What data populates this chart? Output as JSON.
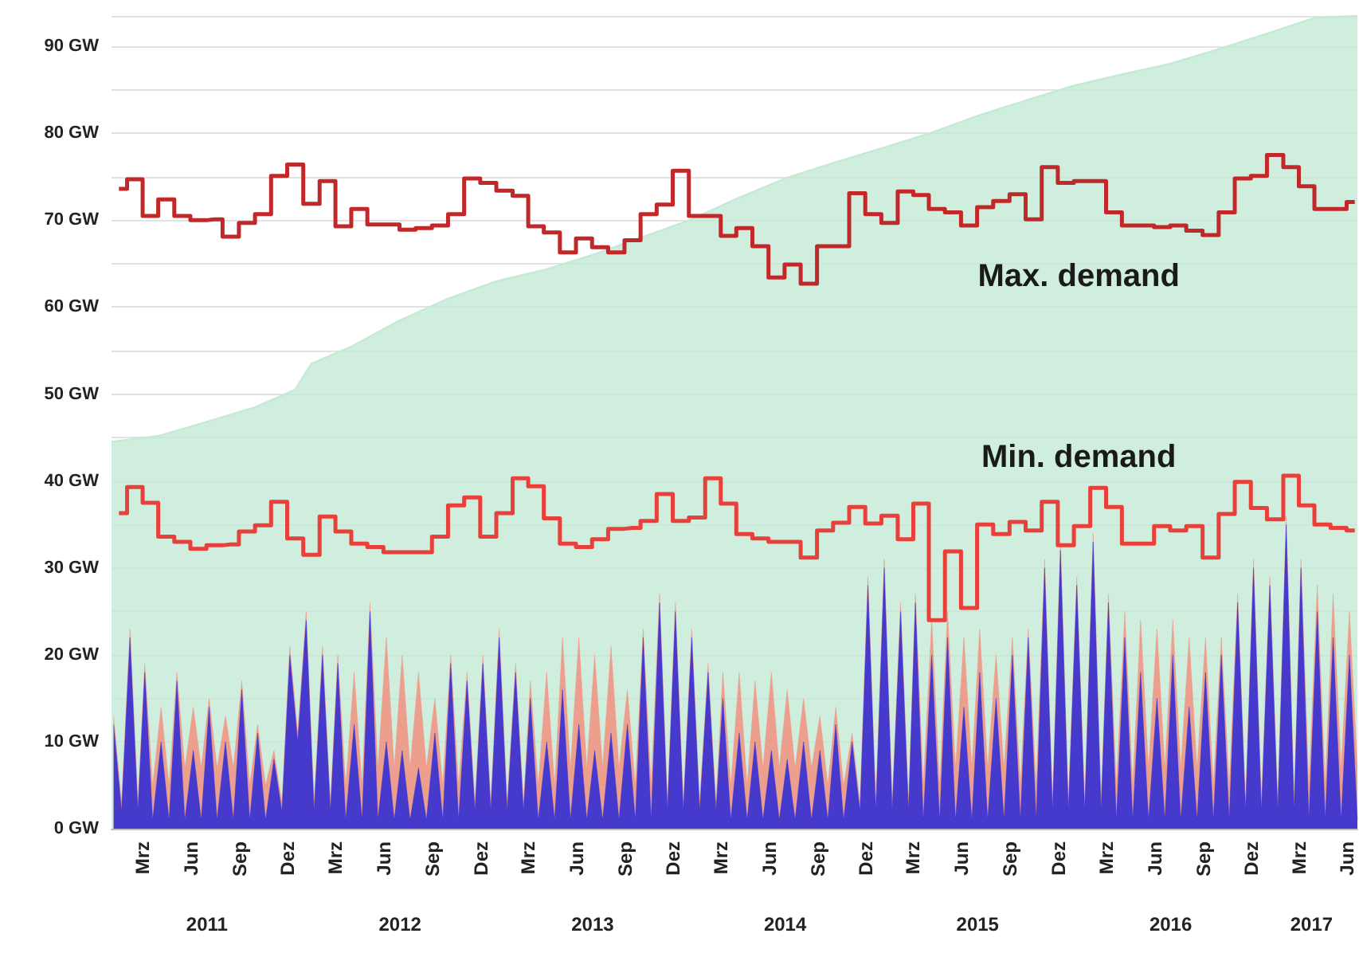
{
  "chart_data": {
    "type": "area",
    "xlim": [
      "2011-01-01",
      "2017-06-20"
    ],
    "ylim": [
      0,
      93.5
    ],
    "yticks": [
      {
        "value": 0,
        "label": "0 GW"
      },
      {
        "value": 5,
        "label": null
      },
      {
        "value": 10,
        "label": "10 GW"
      },
      {
        "value": 15,
        "label": null
      },
      {
        "value": 20,
        "label": "20 GW"
      },
      {
        "value": 25,
        "label": null
      },
      {
        "value": 30,
        "label": "30 GW"
      },
      {
        "value": 35,
        "label": null
      },
      {
        "value": 40,
        "label": "40 GW"
      },
      {
        "value": 45,
        "label": null
      },
      {
        "value": 50,
        "label": "50 GW"
      },
      {
        "value": 55,
        "label": null
      },
      {
        "value": 60,
        "label": "60 GW"
      },
      {
        "value": 65,
        "label": null
      },
      {
        "value": 70,
        "label": "70 GW"
      },
      {
        "value": 75,
        "label": null
      },
      {
        "value": 80,
        "label": "80 GW"
      },
      {
        "value": 85,
        "label": null
      },
      {
        "value": 90,
        "label": "90 GW"
      }
    ],
    "xticks": [
      {
        "value": "2011-03-01",
        "label": "Mrz"
      },
      {
        "value": "2011-06-01",
        "label": "Jun"
      },
      {
        "value": "2011-09-01",
        "label": "Sep"
      },
      {
        "value": "2011-12-01",
        "label": "Dez"
      },
      {
        "value": "2012-03-01",
        "label": "Mrz"
      },
      {
        "value": "2012-06-01",
        "label": "Jun"
      },
      {
        "value": "2012-09-01",
        "label": "Sep"
      },
      {
        "value": "2012-12-01",
        "label": "Dez"
      },
      {
        "value": "2013-03-01",
        "label": "Mrz"
      },
      {
        "value": "2013-06-01",
        "label": "Jun"
      },
      {
        "value": "2013-09-01",
        "label": "Sep"
      },
      {
        "value": "2013-12-01",
        "label": "Dez"
      },
      {
        "value": "2014-03-01",
        "label": "Mrz"
      },
      {
        "value": "2014-06-01",
        "label": "Jun"
      },
      {
        "value": "2014-09-01",
        "label": "Sep"
      },
      {
        "value": "2014-12-01",
        "label": "Dez"
      },
      {
        "value": "2015-03-01",
        "label": "Mrz"
      },
      {
        "value": "2015-06-01",
        "label": "Jun"
      },
      {
        "value": "2015-09-01",
        "label": "Sep"
      },
      {
        "value": "2015-12-01",
        "label": "Dez"
      },
      {
        "value": "2016-03-01",
        "label": "Mrz"
      },
      {
        "value": "2016-06-01",
        "label": "Jun"
      },
      {
        "value": "2016-09-01",
        "label": "Sep"
      },
      {
        "value": "2016-12-01",
        "label": "Dez"
      },
      {
        "value": "2017-03-01",
        "label": "Mrz"
      },
      {
        "value": "2017-06-01",
        "label": "Jun"
      }
    ],
    "grid": "y",
    "marker": "none",
    "annotations": [
      "Max. demand",
      "Min. demand"
    ],
    "x2lim": [
      "2011-01-01",
      "2017-06-20"
    ],
    "x2ticks": [
      {
        "value": "2011-07-01",
        "label": "2011"
      },
      {
        "value": "2012-07-01",
        "label": "2012"
      },
      {
        "value": "2013-07-01",
        "label": "2013"
      },
      {
        "value": "2014-07-01",
        "label": "2014"
      },
      {
        "value": "2015-07-01",
        "label": "2015"
      },
      {
        "value": "2016-07-01",
        "label": "2016"
      },
      {
        "value": "2017-03-25",
        "label": "2017"
      }
    ],
    "x": [
      "2011-01-05",
      "2011-01-20",
      "2011-02-05",
      "2011-02-20",
      "2011-03-05",
      "2011-03-20",
      "2011-04-05",
      "2011-04-20",
      "2011-05-05",
      "2011-05-20",
      "2011-06-05",
      "2011-06-20",
      "2011-07-05",
      "2011-07-20",
      "2011-08-05",
      "2011-08-20",
      "2011-09-05",
      "2011-09-20",
      "2011-10-05",
      "2011-10-20",
      "2011-11-05",
      "2011-11-20",
      "2011-12-05",
      "2011-12-20",
      "2012-01-05",
      "2012-01-20",
      "2012-02-05",
      "2012-02-20",
      "2012-03-05",
      "2012-03-20",
      "2012-04-05",
      "2012-04-20",
      "2012-05-05",
      "2012-05-20",
      "2012-06-05",
      "2012-06-20",
      "2012-07-05",
      "2012-07-20",
      "2012-08-05",
      "2012-08-20",
      "2012-09-05",
      "2012-09-20",
      "2012-10-05",
      "2012-10-20",
      "2012-11-05",
      "2012-11-20",
      "2012-12-05",
      "2012-12-20",
      "2013-01-05",
      "2013-01-20",
      "2013-02-05",
      "2013-02-20",
      "2013-03-05",
      "2013-03-20",
      "2013-04-05",
      "2013-04-20",
      "2013-05-05",
      "2013-05-20",
      "2013-06-05",
      "2013-06-20",
      "2013-07-05",
      "2013-07-20",
      "2013-08-05",
      "2013-08-20",
      "2013-09-05",
      "2013-09-20",
      "2013-10-05",
      "2013-10-20",
      "2013-11-05",
      "2013-11-20",
      "2013-12-05",
      "2013-12-20",
      "2014-01-05",
      "2014-01-20",
      "2014-02-05",
      "2014-02-20",
      "2014-03-05",
      "2014-03-20",
      "2014-04-05",
      "2014-04-20",
      "2014-05-05",
      "2014-05-20",
      "2014-06-05",
      "2014-06-20",
      "2014-07-05",
      "2014-07-20",
      "2014-08-05",
      "2014-08-20",
      "2014-09-05",
      "2014-09-20",
      "2014-10-05",
      "2014-10-20",
      "2014-11-05",
      "2014-11-20",
      "2014-12-05",
      "2014-12-20",
      "2015-01-05",
      "2015-01-20",
      "2015-02-05",
      "2015-02-20",
      "2015-03-05",
      "2015-03-20",
      "2015-04-05",
      "2015-04-20",
      "2015-05-05",
      "2015-05-20",
      "2015-06-05",
      "2015-06-20",
      "2015-07-05",
      "2015-07-20",
      "2015-08-05",
      "2015-08-20",
      "2015-09-05",
      "2015-09-20",
      "2015-10-05",
      "2015-10-20",
      "2015-11-05",
      "2015-11-20",
      "2015-12-05",
      "2015-12-20",
      "2016-01-05",
      "2016-01-20",
      "2016-02-05",
      "2016-02-20",
      "2016-03-05",
      "2016-03-20",
      "2016-04-05",
      "2016-04-20",
      "2016-05-05",
      "2016-05-20",
      "2016-06-05",
      "2016-06-20",
      "2016-07-05",
      "2016-07-20",
      "2016-08-05",
      "2016-08-20",
      "2016-09-05",
      "2016-09-20",
      "2016-10-05",
      "2016-10-20",
      "2016-11-05",
      "2016-11-20",
      "2016-12-05",
      "2016-12-20",
      "2017-01-05",
      "2017-01-20",
      "2017-02-05",
      "2017-02-20",
      "2017-03-05",
      "2017-03-20",
      "2017-04-05",
      "2017-04-20",
      "2017-05-05",
      "2017-05-20",
      "2017-06-05",
      "2017-06-20"
    ],
    "series": [
      {
        "color": "#c4ead6",
        "x": [
          "2011-01-01",
          "2011-04-01",
          "2011-07-01",
          "2011-10-01",
          "2011-12-15",
          "2012-01-15",
          "2012-04-01",
          "2012-07-01",
          "2012-10-01",
          "2013-01-01",
          "2013-04-01",
          "2013-07-01",
          "2013-10-01",
          "2014-01-01",
          "2014-04-01",
          "2014-07-01",
          "2014-10-01",
          "2015-01-01",
          "2015-04-01",
          "2015-07-01",
          "2015-10-01",
          "2016-01-01",
          "2016-04-01",
          "2016-07-01",
          "2016-10-01",
          "2017-01-01",
          "2017-04-01",
          "2017-06-20"
        ],
        "values": [
          44.5,
          45.2,
          46.8,
          48.5,
          50.5,
          53.5,
          55.5,
          58.5,
          61,
          63,
          64.3,
          66,
          68,
          70,
          72.5,
          74.8,
          76.6,
          78.3,
          80,
          82,
          83.8,
          85.5,
          86.8,
          88,
          89.7,
          91.5,
          93.3,
          93.5
        ]
      },
      {
        "color": "#f29080",
        "values": [
          13,
          3,
          23,
          3,
          19,
          5,
          14,
          5,
          18,
          7,
          14,
          7,
          15,
          7,
          13,
          7,
          17,
          5,
          12,
          5,
          9,
          3,
          21,
          11,
          25,
          3,
          21,
          3,
          20,
          5,
          18,
          5,
          26,
          7,
          22,
          7,
          20,
          7,
          18,
          7,
          15,
          5,
          20,
          5,
          18,
          3,
          20,
          3,
          23,
          3,
          19,
          3,
          17,
          5,
          18,
          5,
          22,
          7,
          22,
          7,
          20,
          7,
          21,
          7,
          16,
          5,
          23,
          5,
          27,
          3,
          26,
          3,
          23,
          3,
          19,
          3,
          18,
          5,
          18,
          5,
          17,
          7,
          18,
          7,
          16,
          7,
          15,
          7,
          13,
          5,
          14,
          5,
          11,
          3,
          29,
          3,
          31,
          3,
          26,
          3,
          27,
          5,
          24,
          5,
          25,
          7,
          22,
          7,
          23,
          7,
          20,
          7,
          22,
          5,
          23,
          5,
          31,
          3,
          33,
          3,
          29,
          3,
          34,
          3,
          27,
          5,
          25,
          5,
          24,
          7,
          23,
          7,
          24,
          7,
          22,
          7,
          22,
          5,
          22,
          5,
          27,
          3,
          31,
          3,
          29,
          3,
          36,
          3,
          31,
          5,
          28,
          5,
          27,
          7,
          25,
          7
        ]
      },
      {
        "color": "#2828d8",
        "values": [
          12,
          2,
          22,
          2,
          18,
          1,
          10,
          1,
          17,
          1,
          9,
          1,
          14,
          1,
          10,
          1,
          16,
          1,
          11,
          1,
          8,
          2,
          20,
          10,
          24,
          2,
          20,
          2,
          19,
          1,
          12,
          1,
          25,
          1,
          10,
          1,
          9,
          1,
          7,
          1,
          11,
          1,
          19,
          1,
          17,
          2,
          19,
          2,
          22,
          2,
          18,
          2,
          15,
          1,
          10,
          1,
          16,
          1,
          12,
          1,
          9,
          1,
          11,
          1,
          12,
          1,
          22,
          1,
          26,
          2,
          25,
          2,
          22,
          2,
          18,
          2,
          15,
          1,
          11,
          1,
          10,
          1,
          9,
          1,
          8,
          1,
          10,
          1,
          9,
          1,
          12,
          1,
          10,
          2,
          28,
          2,
          30,
          2,
          25,
          2,
          26,
          1,
          20,
          1,
          22,
          1,
          14,
          1,
          18,
          1,
          15,
          1,
          20,
          1,
          22,
          1,
          30,
          2,
          32,
          2,
          28,
          2,
          33,
          2,
          26,
          1,
          22,
          1,
          18,
          1,
          15,
          1,
          20,
          1,
          14,
          1,
          18,
          1,
          20,
          1,
          26,
          2,
          30,
          2,
          28,
          2,
          35,
          2,
          30,
          1,
          25,
          1,
          22,
          1,
          20,
          1
        ]
      },
      {
        "type": "step",
        "color": "#c0282a",
        "x": [
          "2011-01-15",
          "2011-02-15",
          "2011-03-15",
          "2011-04-15",
          "2011-05-15",
          "2011-06-15",
          "2011-07-15",
          "2011-08-15",
          "2011-09-15",
          "2011-10-15",
          "2011-11-15",
          "2011-12-15",
          "2012-01-15",
          "2012-02-15",
          "2012-03-15",
          "2012-04-15",
          "2012-05-15",
          "2012-06-15",
          "2012-07-15",
          "2012-08-15",
          "2012-09-15",
          "2012-10-15",
          "2012-11-15",
          "2012-12-15",
          "2013-01-15",
          "2013-02-15",
          "2013-03-15",
          "2013-04-15",
          "2013-05-15",
          "2013-06-15",
          "2013-07-15",
          "2013-08-15",
          "2013-09-15",
          "2013-10-15",
          "2013-11-15",
          "2013-12-15",
          "2014-01-15",
          "2014-02-15",
          "2014-03-15",
          "2014-04-15",
          "2014-05-15",
          "2014-06-15",
          "2014-07-15",
          "2014-08-15",
          "2014-09-15",
          "2014-10-15",
          "2014-11-15",
          "2014-12-15",
          "2015-01-15",
          "2015-02-15",
          "2015-03-15",
          "2015-04-15",
          "2015-05-15",
          "2015-06-15",
          "2015-07-15",
          "2015-08-15",
          "2015-09-15",
          "2015-10-15",
          "2015-11-15",
          "2015-12-15",
          "2016-01-15",
          "2016-02-15",
          "2016-03-15",
          "2016-04-15",
          "2016-05-15",
          "2016-06-15",
          "2016-07-15",
          "2016-08-15",
          "2016-09-15",
          "2016-10-15",
          "2016-11-15",
          "2016-12-15",
          "2017-01-15",
          "2017-02-15",
          "2017-03-15",
          "2017-04-15",
          "2017-05-15",
          "2017-06-15"
        ],
        "values": [
          73.6,
          74.7,
          70.5,
          72.4,
          70.5,
          70.0,
          70.1,
          68.1,
          69.7,
          70.7,
          75.1,
          76.4,
          71.9,
          74.5,
          69.3,
          71.3,
          69.5,
          69.5,
          68.9,
          69.1,
          69.4,
          70.7,
          74.8,
          74.3,
          73.4,
          72.8,
          69.3,
          68.6,
          66.3,
          67.9,
          66.9,
          66.3,
          67.7,
          70.7,
          71.8,
          75.7,
          70.5,
          70.5,
          68.2,
          69.1,
          67.0,
          63.4,
          64.9,
          62.7,
          67.0,
          67.0,
          73.1,
          70.7,
          69.7,
          73.3,
          72.9,
          71.3,
          70.9,
          69.4,
          71.5,
          72.2,
          73.0,
          70.1,
          76.1,
          74.3,
          74.5,
          74.5,
          70.9,
          69.4,
          69.4,
          69.2,
          69.4,
          68.8,
          68.3,
          70.9,
          74.8,
          75.1,
          77.5,
          76.1,
          73.9,
          71.3,
          71.3,
          72.1
        ]
      },
      {
        "type": "step",
        "color": "#e8403a",
        "x": [
          "2011-01-15",
          "2011-02-15",
          "2011-03-15",
          "2011-04-15",
          "2011-05-15",
          "2011-06-15",
          "2011-07-15",
          "2011-08-15",
          "2011-09-15",
          "2011-10-15",
          "2011-11-15",
          "2011-12-15",
          "2012-01-15",
          "2012-02-15",
          "2012-03-15",
          "2012-04-15",
          "2012-05-15",
          "2012-06-15",
          "2012-07-15",
          "2012-08-15",
          "2012-09-15",
          "2012-10-15",
          "2012-11-15",
          "2012-12-15",
          "2013-01-15",
          "2013-02-15",
          "2013-03-15",
          "2013-04-15",
          "2013-05-15",
          "2013-06-15",
          "2013-07-15",
          "2013-08-15",
          "2013-09-15",
          "2013-10-15",
          "2013-11-15",
          "2013-12-15",
          "2014-01-15",
          "2014-02-15",
          "2014-03-15",
          "2014-04-15",
          "2014-05-15",
          "2014-06-15",
          "2014-07-15",
          "2014-08-15",
          "2014-09-15",
          "2014-10-15",
          "2014-11-15",
          "2014-12-15",
          "2015-01-15",
          "2015-02-15",
          "2015-03-15",
          "2015-04-15",
          "2015-05-15",
          "2015-06-15",
          "2015-07-15",
          "2015-08-15",
          "2015-09-15",
          "2015-10-15",
          "2015-11-15",
          "2015-12-15",
          "2016-01-15",
          "2016-02-15",
          "2016-03-15",
          "2016-04-15",
          "2016-05-15",
          "2016-06-15",
          "2016-07-15",
          "2016-08-15",
          "2016-09-15",
          "2016-10-15",
          "2016-11-15",
          "2016-12-15",
          "2017-01-15",
          "2017-02-15",
          "2017-03-15",
          "2017-04-15",
          "2017-05-15",
          "2017-06-15"
        ],
        "values": [
          36.3,
          39.3,
          37.5,
          33.6,
          33.0,
          32.2,
          32.6,
          32.7,
          34.2,
          34.9,
          37.6,
          33.4,
          31.5,
          35.9,
          34.2,
          32.8,
          32.4,
          31.8,
          31.8,
          31.8,
          33.6,
          37.2,
          38.1,
          33.6,
          36.3,
          40.3,
          39.4,
          35.7,
          32.8,
          32.4,
          33.3,
          34.5,
          34.6,
          35.4,
          38.5,
          35.4,
          35.8,
          40.3,
          37.4,
          33.9,
          33.4,
          33.0,
          33.0,
          31.2,
          34.3,
          35.2,
          37.0,
          35.1,
          36.0,
          33.3,
          37.4,
          24.0,
          31.9,
          25.4,
          35.0,
          33.9,
          35.3,
          34.3,
          37.6,
          32.6,
          34.8,
          39.2,
          37.0,
          32.8,
          32.8,
          34.8,
          34.3,
          34.8,
          31.2,
          36.2,
          39.9,
          36.9,
          35.6,
          40.6,
          37.2,
          35.0,
          34.6,
          34.3
        ]
      }
    ]
  }
}
